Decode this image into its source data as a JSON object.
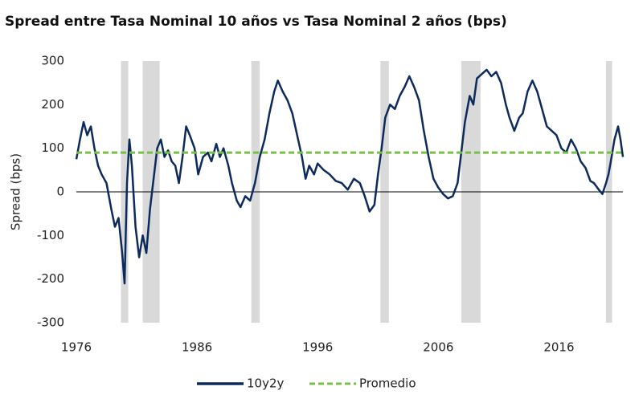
{
  "chart_data": {
    "type": "line",
    "title": "Spread entre Tasa Nominal 10 años vs Tasa Nominal 2 años (bps)",
    "y_label": "Spread (bps)",
    "xlim": [
      1976,
      2021.3
    ],
    "ylim": [
      -300,
      300
    ],
    "xticks": [
      1976,
      1986,
      1996,
      2006,
      2016
    ],
    "yticks": [
      300,
      200,
      100,
      0,
      -100,
      -200,
      -300
    ],
    "shaded_periods": [
      [
        1979.7,
        1980.3
      ],
      [
        1981.5,
        1982.9
      ],
      [
        1990.5,
        1991.2
      ],
      [
        2001.2,
        2001.9
      ],
      [
        2007.9,
        2009.5
      ],
      [
        2019.9,
        2020.4
      ]
    ],
    "shade_color": "#d9d9d9",
    "series": [
      {
        "name": "10y2y",
        "color": "#0d2a5c",
        "dash": false,
        "x": [
          1976.0,
          1976.3,
          1976.6,
          1976.9,
          1977.2,
          1977.5,
          1977.8,
          1978.1,
          1978.5,
          1978.9,
          1979.2,
          1979.5,
          1979.8,
          1980.0,
          1980.2,
          1980.4,
          1980.6,
          1980.9,
          1981.2,
          1981.5,
          1981.8,
          1982.1,
          1982.4,
          1982.7,
          1983.0,
          1983.3,
          1983.6,
          1983.9,
          1984.2,
          1984.5,
          1984.8,
          1985.1,
          1985.4,
          1985.8,
          1986.1,
          1986.5,
          1986.9,
          1987.2,
          1987.6,
          1987.9,
          1988.2,
          1988.6,
          1988.9,
          1989.3,
          1989.6,
          1990.0,
          1990.4,
          1990.8,
          1991.2,
          1991.6,
          1992.0,
          1992.4,
          1992.7,
          1993.1,
          1993.5,
          1993.9,
          1994.3,
          1994.7,
          1995.0,
          1995.3,
          1995.7,
          1996.0,
          1996.5,
          1997.0,
          1997.5,
          1998.0,
          1998.5,
          1999.0,
          1999.5,
          1999.9,
          2000.3,
          2000.7,
          2001.0,
          2001.3,
          2001.6,
          2002.0,
          2002.4,
          2002.8,
          2003.2,
          2003.6,
          2004.0,
          2004.4,
          2004.8,
          2005.2,
          2005.6,
          2006.0,
          2006.4,
          2006.8,
          2007.2,
          2007.6,
          2007.9,
          2008.2,
          2008.6,
          2008.9,
          2009.2,
          2009.6,
          2010.0,
          2010.4,
          2010.8,
          2011.2,
          2011.6,
          2011.9,
          2012.3,
          2012.7,
          2013.0,
          2013.4,
          2013.8,
          2014.2,
          2014.6,
          2015.0,
          2015.4,
          2015.8,
          2016.2,
          2016.6,
          2017.0,
          2017.4,
          2017.8,
          2018.2,
          2018.6,
          2018.9,
          2019.3,
          2019.6,
          2019.9,
          2020.1,
          2020.3,
          2020.6,
          2020.9,
          2021.1,
          2021.3
        ],
        "values": [
          75,
          120,
          160,
          130,
          150,
          100,
          60,
          40,
          20,
          -40,
          -80,
          -60,
          -140,
          -210,
          20,
          120,
          60,
          -80,
          -150,
          -100,
          -140,
          -40,
          30,
          100,
          120,
          80,
          95,
          70,
          60,
          20,
          80,
          150,
          130,
          100,
          40,
          80,
          90,
          70,
          110,
          80,
          100,
          60,
          20,
          -20,
          -35,
          -10,
          -20,
          20,
          80,
          120,
          180,
          230,
          255,
          230,
          210,
          180,
          130,
          80,
          30,
          60,
          40,
          65,
          50,
          40,
          25,
          20,
          5,
          30,
          20,
          -10,
          -45,
          -30,
          40,
          100,
          170,
          200,
          190,
          220,
          240,
          265,
          240,
          210,
          140,
          80,
          30,
          10,
          -5,
          -15,
          -10,
          20,
          90,
          160,
          220,
          200,
          260,
          270,
          280,
          265,
          275,
          250,
          200,
          170,
          140,
          170,
          180,
          230,
          255,
          230,
          190,
          150,
          140,
          130,
          100,
          90,
          120,
          100,
          70,
          55,
          25,
          20,
          5,
          -5,
          20,
          40,
          70,
          120,
          150,
          120,
          80
        ]
      },
      {
        "name": "Promedio",
        "color": "#77c043",
        "dash": true,
        "x": [
          1976,
          2021.3
        ],
        "values": [
          90,
          90
        ]
      }
    ]
  }
}
